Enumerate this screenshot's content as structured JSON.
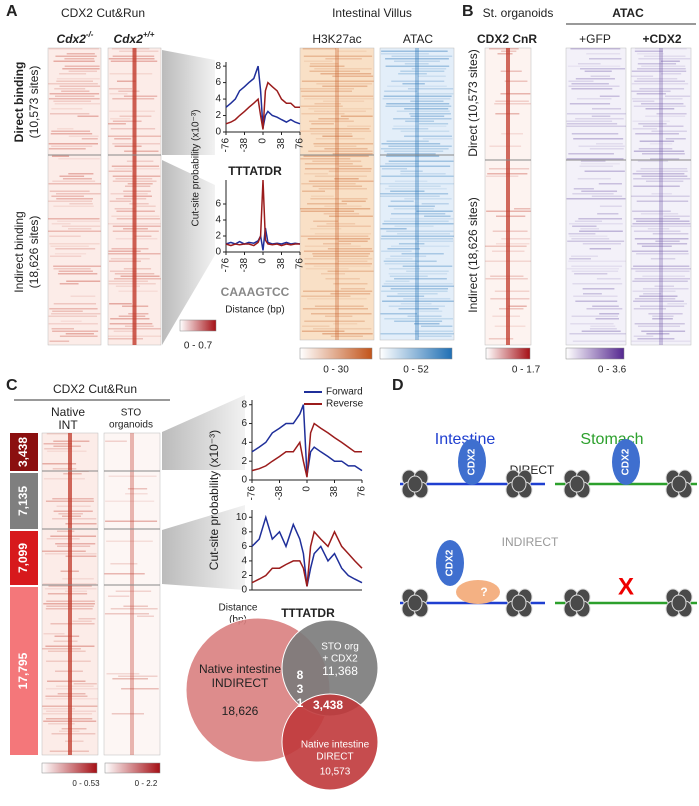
{
  "panel_a": {
    "letter": "A",
    "title": "CDX2 Cut&Run",
    "col1": "Cdx2",
    "col1_sup": "-/-",
    "col2": "Cdx2",
    "col2_sup": "+/+",
    "row1": "Direct binding",
    "row1_sites": "(10,573 sites)",
    "row2": "Indirect binding",
    "row2_sites": "(18,626 sites)",
    "colorbar": "0 - 0.7",
    "motif1": "TTTATDR",
    "motif2": "CAAAGTCC",
    "xlabel": "Distance (bp)",
    "ylabel": "Cut-site probability (x10⁻³)",
    "villus_title": "Intestinal Villus",
    "villus_cols": [
      "H3K27ac",
      "ATAC"
    ],
    "villus_colorbars": [
      "0 - 30",
      "0 - 52"
    ]
  },
  "panel_b": {
    "letter": "B",
    "title": "St. organoids",
    "atac": "ATAC",
    "cols": [
      "CDX2 CnR",
      "+GFP",
      "+CDX2"
    ],
    "row1": "Direct (10,573 sites)",
    "row2": "Indirect (18,626 sites)",
    "colorbars": [
      "0 - 1.7",
      "0 - 3.6"
    ]
  },
  "panel_c": {
    "letter": "C",
    "title": "CDX2 Cut&Run",
    "col1": [
      "Native",
      "INT"
    ],
    "col2": [
      "STO",
      "organoids"
    ],
    "groups": [
      "3,438",
      "7,135",
      "7,099",
      "17,795"
    ],
    "colorbars": [
      "0 - 0.53",
      "0 - 2.2"
    ],
    "ylabel": "Cut-site probability (x10⁻³)",
    "xlabel": [
      "Distance",
      "(bp)"
    ],
    "motif": "TTTATDR",
    "venn": {
      "indirect": [
        "Native intestine",
        "INDIRECT",
        "18,626"
      ],
      "sto": [
        "STO org",
        "+ CDX2",
        "11,368"
      ],
      "overlap_small": [
        "8",
        "3",
        "1"
      ],
      "overlap": "3,438",
      "direct": [
        "Native intestine",
        "DIRECT",
        "10,573"
      ]
    }
  },
  "panel_d": {
    "letter": "D",
    "intestine": "Intestine",
    "stomach": "Stomach",
    "direct": "DIRECT",
    "indirect": "INDIRECT",
    "factor": "CDX2",
    "unknown": "?",
    "absent": "X"
  },
  "chart_data": [
    {
      "type": "line",
      "x": [
        -76,
        -66,
        -57,
        -48,
        -38,
        -29,
        -19,
        -10,
        -5,
        0,
        5,
        10,
        19,
        29,
        38,
        48,
        57,
        66,
        76
      ],
      "series": [
        {
          "color": "#1f2f9a",
          "values": [
            3,
            3.5,
            4,
            5,
            5.5,
            6,
            6.5,
            8,
            5,
            0.5,
            2,
            2.5,
            2,
            1.8,
            1.5,
            1.2,
            1.5,
            1.2,
            1
          ]
        },
        {
          "color": "#9b1c1c",
          "values": [
            1,
            1.2,
            1.5,
            2,
            2.5,
            3,
            3.5,
            4,
            2,
            0.3,
            5,
            6,
            5.5,
            5,
            4,
            3.5,
            3.5,
            3,
            3
          ]
        }
      ],
      "xlim": [
        -76,
        76
      ],
      "ylim": [
        0,
        8.5
      ],
      "xticks": [
        -76,
        -38,
        0,
        38,
        76
      ],
      "yticks": [
        0,
        2,
        4,
        6,
        8
      ]
    },
    {
      "type": "line",
      "x": [
        -76,
        -66,
        -57,
        -48,
        -38,
        -29,
        -19,
        -10,
        -5,
        0,
        5,
        10,
        19,
        29,
        38,
        48,
        57,
        66,
        76
      ],
      "series": [
        {
          "color": "#1f2f9a",
          "values": [
            1,
            1.2,
            1,
            1.3,
            1,
            1.2,
            1.1,
            1.4,
            2,
            0.2,
            3,
            1.2,
            1,
            1.1,
            1,
            1.2,
            1,
            1.1,
            1
          ]
        },
        {
          "color": "#9b1c1c",
          "values": [
            1,
            0.8,
            1,
            0.9,
            1,
            1,
            0.8,
            1.2,
            2,
            9,
            1.5,
            1,
            0.9,
            1,
            0.8,
            1,
            0.9,
            1,
            1
          ]
        }
      ],
      "xlim": [
        -76,
        76
      ],
      "ylim": [
        0,
        9
      ],
      "xticks": [
        -76,
        -38,
        0,
        38,
        76
      ],
      "yticks": [
        0,
        2,
        4,
        6
      ]
    },
    {
      "type": "line",
      "x": [
        -76,
        -66,
        -57,
        -48,
        -38,
        -29,
        -19,
        -10,
        -5,
        0,
        5,
        10,
        19,
        29,
        38,
        48,
        57,
        66,
        76
      ],
      "series": [
        {
          "name": "Forward",
          "color": "#1f2f9a",
          "values": [
            3,
            3.5,
            4,
            5,
            5.5,
            6,
            6,
            7,
            8,
            0.5,
            3,
            3.5,
            3,
            2.5,
            2,
            2,
            1.5,
            1.5,
            1
          ]
        },
        {
          "name": "Reverse",
          "color": "#9b1c1c",
          "values": [
            1,
            1.2,
            1.5,
            2,
            2.5,
            3,
            3,
            4,
            2,
            0.3,
            5,
            6,
            5.5,
            5,
            4.5,
            4,
            3.5,
            3,
            3
          ]
        }
      ],
      "xlim": [
        -76,
        76
      ],
      "ylim": [
        0,
        8.5
      ],
      "xticks": [
        -76,
        -38,
        0,
        38,
        76
      ],
      "yticks": [
        0,
        2,
        4,
        6,
        8
      ],
      "legend": "top-right"
    },
    {
      "type": "line",
      "x": [
        -76,
        -66,
        -57,
        -48,
        -38,
        -29,
        -19,
        -10,
        -5,
        0,
        5,
        10,
        19,
        29,
        38,
        48,
        57,
        66,
        76
      ],
      "series": [
        {
          "color": "#1f2f9a",
          "values": [
            6,
            7,
            10,
            7,
            8,
            6,
            9,
            7,
            5,
            0.5,
            3,
            5,
            6,
            4,
            5,
            3,
            2,
            1.5,
            1
          ]
        },
        {
          "color": "#9b1c1c",
          "values": [
            1,
            1.5,
            2,
            3,
            3,
            3.5,
            4,
            4,
            3,
            0.5,
            6,
            8,
            7,
            6,
            8,
            6,
            5,
            4,
            3
          ]
        }
      ],
      "xlim": [
        -76,
        76
      ],
      "ylim": [
        0,
        11
      ],
      "yticks": [
        0,
        2,
        4,
        6,
        8,
        10
      ]
    }
  ]
}
